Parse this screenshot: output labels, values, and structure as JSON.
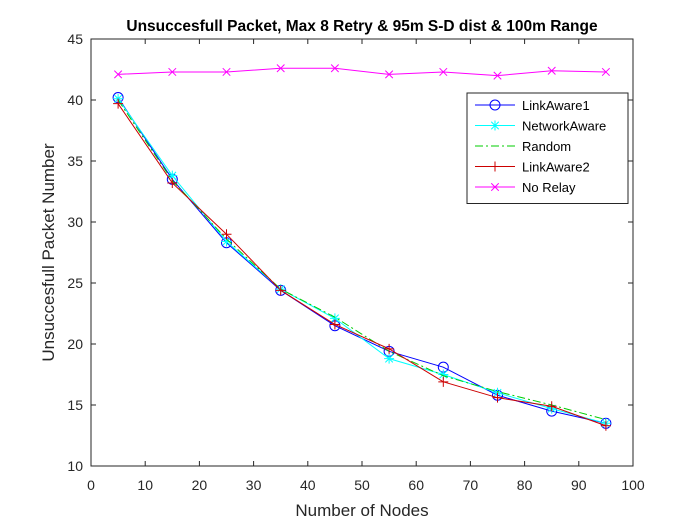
{
  "chart_data": {
    "type": "line",
    "title": "Unsuccesfull Packet, Max 8 Retry & 95m S-D dist & 100m Range",
    "xlabel": "Number of Nodes",
    "ylabel": "Unsuccesfull Packet Number",
    "xlim": [
      0,
      100
    ],
    "ylim": [
      10,
      45
    ],
    "xticks": [
      0,
      10,
      20,
      30,
      40,
      50,
      60,
      70,
      80,
      90,
      100
    ],
    "yticks": [
      10,
      15,
      20,
      25,
      30,
      35,
      40,
      45
    ],
    "grid": false,
    "legend_position": "top-right",
    "x": [
      5,
      15,
      25,
      35,
      45,
      55,
      65,
      75,
      85,
      95
    ],
    "series": [
      {
        "name": "LinkAware1",
        "color": "#0000ff",
        "marker": "circle",
        "dash": "solid",
        "values": [
          40.2,
          33.5,
          28.3,
          24.4,
          21.5,
          19.4,
          18.1,
          15.8,
          14.5,
          13.5
        ]
      },
      {
        "name": "NetworkAware",
        "color": "#00ffff",
        "marker": "asterisk",
        "dash": "solid",
        "values": [
          40.1,
          33.8,
          28.4,
          24.5,
          22.1,
          18.8,
          17.5,
          16.0,
          14.7,
          13.5
        ]
      },
      {
        "name": "Random",
        "color": "#00cc00",
        "marker": "none",
        "dash": "dashdot",
        "values": [
          40.0,
          33.4,
          28.6,
          24.5,
          22.2,
          19.4,
          17.4,
          16.1,
          15.0,
          13.8
        ]
      },
      {
        "name": "LinkAware2",
        "color": "#cc0000",
        "marker": "plus",
        "dash": "solid",
        "values": [
          39.7,
          33.2,
          29.0,
          24.4,
          21.6,
          19.6,
          16.9,
          15.6,
          14.9,
          13.3
        ]
      },
      {
        "name": "No Relay",
        "color": "#ff00ff",
        "marker": "x",
        "dash": "solid",
        "values": [
          42.1,
          42.3,
          42.3,
          42.6,
          42.6,
          42.1,
          42.3,
          42.0,
          42.4,
          42.3
        ]
      }
    ]
  }
}
